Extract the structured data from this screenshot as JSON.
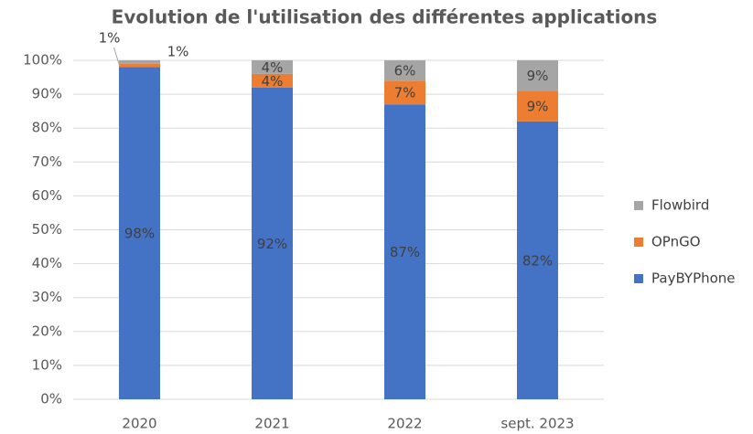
{
  "chart_data": {
    "type": "stacked_bar",
    "title": "Evolution de l'utilisation des différentes applications",
    "categories": [
      "2020",
      "2021",
      "2022",
      "sept. 2023"
    ],
    "series": [
      {
        "name": "PayBYPhone",
        "color": "#4472c4",
        "values": [
          98,
          92,
          87,
          82
        ],
        "value_labels": [
          "98%",
          "92%",
          "87%",
          "82%"
        ]
      },
      {
        "name": "OPnGO",
        "color": "#ed7d31",
        "values": [
          1,
          4,
          7,
          9
        ],
        "value_labels": [
          "1%",
          "4%",
          "7%",
          "9%"
        ]
      },
      {
        "name": "Flowbird",
        "color": "#a5a5a5",
        "values": [
          1,
          4,
          6,
          9
        ],
        "value_labels": [
          "1%",
          "4%",
          "6%",
          "9%"
        ]
      }
    ],
    "ylim": [
      0,
      100
    ],
    "yticks": [
      {
        "value": 0,
        "label": "0%"
      },
      {
        "value": 10,
        "label": "10%"
      },
      {
        "value": 20,
        "label": "20%"
      },
      {
        "value": 30,
        "label": "30%"
      },
      {
        "value": 40,
        "label": "40%"
      },
      {
        "value": 50,
        "label": "50%"
      },
      {
        "value": 60,
        "label": "60%"
      },
      {
        "value": 70,
        "label": "70%"
      },
      {
        "value": 80,
        "label": "80%"
      },
      {
        "value": 90,
        "label": "90%"
      },
      {
        "value": 100,
        "label": "100%"
      }
    ],
    "grid": true,
    "legend": "right"
  }
}
